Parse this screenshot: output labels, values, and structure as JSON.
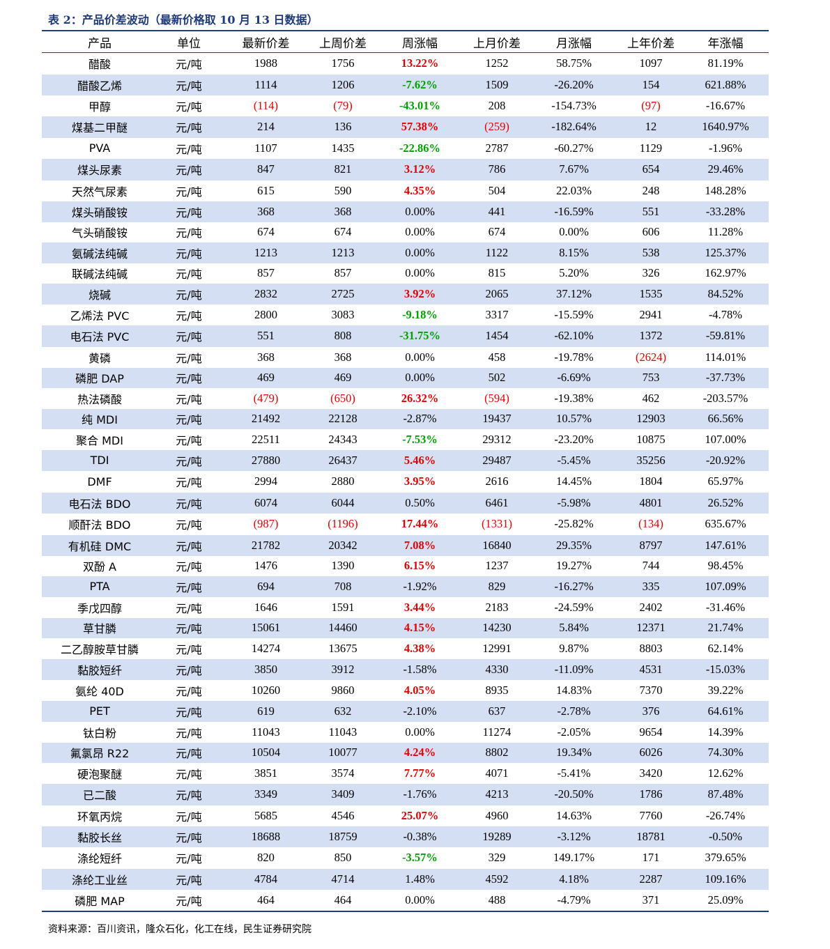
{
  "title": "表 2：产品价差波动（最新价格取 10 月 13 日数据）",
  "headers": [
    "产品",
    "单位",
    "最新价差",
    "上周价差",
    "周涨幅",
    "上月价差",
    "月涨幅",
    "上年价差",
    "年涨幅"
  ],
  "rows": [
    [
      "醋酸",
      "元/吨",
      "1988",
      "1756",
      "13.22%",
      "1252",
      "58.75%",
      "1097",
      "81.19%"
    ],
    [
      "醋酸乙烯",
      "元/吨",
      "1114",
      "1206",
      "-7.62%",
      "1509",
      "-26.20%",
      "154",
      "621.88%"
    ],
    [
      "甲醇",
      "元/吨",
      "(114)",
      "(79)",
      "-43.01%",
      "208",
      "-154.73%",
      "(97)",
      "-16.67%"
    ],
    [
      "煤基二甲醚",
      "元/吨",
      "214",
      "136",
      "57.38%",
      "(259)",
      "-182.64%",
      "12",
      "1640.97%"
    ],
    [
      "PVA",
      "元/吨",
      "1107",
      "1435",
      "-22.86%",
      "2787",
      "-60.27%",
      "1129",
      "-1.96%"
    ],
    [
      "煤头尿素",
      "元/吨",
      "847",
      "821",
      "3.12%",
      "786",
      "7.67%",
      "654",
      "29.46%"
    ],
    [
      "天然气尿素",
      "元/吨",
      "615",
      "590",
      "4.35%",
      "504",
      "22.03%",
      "248",
      "148.28%"
    ],
    [
      "煤头硝酸铵",
      "元/吨",
      "368",
      "368",
      "0.00%",
      "441",
      "-16.59%",
      "551",
      "-33.28%"
    ],
    [
      "气头硝酸铵",
      "元/吨",
      "674",
      "674",
      "0.00%",
      "674",
      "0.00%",
      "606",
      "11.28%"
    ],
    [
      "氨碱法纯碱",
      "元/吨",
      "1213",
      "1213",
      "0.00%",
      "1122",
      "8.15%",
      "538",
      "125.37%"
    ],
    [
      "联碱法纯碱",
      "元/吨",
      "857",
      "857",
      "0.00%",
      "815",
      "5.20%",
      "326",
      "162.97%"
    ],
    [
      "烧碱",
      "元/吨",
      "2832",
      "2725",
      "3.92%",
      "2065",
      "37.12%",
      "1535",
      "84.52%"
    ],
    [
      "乙烯法 PVC",
      "元/吨",
      "2800",
      "3083",
      "-9.18%",
      "3317",
      "-15.59%",
      "2941",
      "-4.78%"
    ],
    [
      "电石法 PVC",
      "元/吨",
      "551",
      "808",
      "-31.75%",
      "1454",
      "-62.10%",
      "1372",
      "-59.81%"
    ],
    [
      "黄磷",
      "元/吨",
      "368",
      "368",
      "0.00%",
      "458",
      "-19.78%",
      "(2624)",
      "114.01%"
    ],
    [
      "磷肥 DAP",
      "元/吨",
      "469",
      "469",
      "0.00%",
      "502",
      "-6.69%",
      "753",
      "-37.73%"
    ],
    [
      "热法磷酸",
      "元/吨",
      "(479)",
      "(650)",
      "26.32%",
      "(594)",
      "-19.38%",
      "462",
      "-203.57%"
    ],
    [
      "纯 MDI",
      "元/吨",
      "21492",
      "22128",
      "-2.87%",
      "19437",
      "10.57%",
      "12903",
      "66.56%"
    ],
    [
      "聚合 MDI",
      "元/吨",
      "22511",
      "24343",
      "-7.53%",
      "29312",
      "-23.20%",
      "10875",
      "107.00%"
    ],
    [
      "TDI",
      "元/吨",
      "27880",
      "26437",
      "5.46%",
      "29487",
      "-5.45%",
      "35256",
      "-20.92%"
    ],
    [
      "DMF",
      "元/吨",
      "2994",
      "2880",
      "3.95%",
      "2616",
      "14.45%",
      "1804",
      "65.97%"
    ],
    [
      "电石法 BDO",
      "元/吨",
      "6074",
      "6044",
      "0.50%",
      "6461",
      "-5.98%",
      "4801",
      "26.52%"
    ],
    [
      "顺酐法 BDO",
      "元/吨",
      "(987)",
      "(1196)",
      "17.44%",
      "(1331)",
      "-25.82%",
      "(134)",
      "635.67%"
    ],
    [
      "有机硅 DMC",
      "元/吨",
      "21782",
      "20342",
      "7.08%",
      "16840",
      "29.35%",
      "8797",
      "147.61%"
    ],
    [
      "双酚 A",
      "元/吨",
      "1476",
      "1390",
      "6.15%",
      "1237",
      "19.27%",
      "744",
      "98.45%"
    ],
    [
      "PTA",
      "元/吨",
      "694",
      "708",
      "-1.92%",
      "829",
      "-16.27%",
      "335",
      "107.09%"
    ],
    [
      "季戊四醇",
      "元/吨",
      "1646",
      "1591",
      "3.44%",
      "2183",
      "-24.59%",
      "2402",
      "-31.46%"
    ],
    [
      "草甘膦",
      "元/吨",
      "15061",
      "14460",
      "4.15%",
      "14230",
      "5.84%",
      "12371",
      "21.74%"
    ],
    [
      "二乙醇胺草甘膦",
      "元/吨",
      "14274",
      "13675",
      "4.38%",
      "12991",
      "9.87%",
      "8803",
      "62.14%"
    ],
    [
      "黏胶短纤",
      "元/吨",
      "3850",
      "3912",
      "-1.58%",
      "4330",
      "-11.09%",
      "4531",
      "-15.03%"
    ],
    [
      "氨纶 40D",
      "元/吨",
      "10260",
      "9860",
      "4.05%",
      "8935",
      "14.83%",
      "7370",
      "39.22%"
    ],
    [
      "PET",
      "元/吨",
      "619",
      "632",
      "-2.10%",
      "637",
      "-2.78%",
      "376",
      "64.61%"
    ],
    [
      "钛白粉",
      "元/吨",
      "11043",
      "11043",
      "0.00%",
      "11274",
      "-2.05%",
      "9654",
      "14.39%"
    ],
    [
      "氟氯昂 R22",
      "元/吨",
      "10504",
      "10077",
      "4.24%",
      "8802",
      "19.34%",
      "6026",
      "74.30%"
    ],
    [
      "硬泡聚醚",
      "元/吨",
      "3851",
      "3574",
      "7.77%",
      "4071",
      "-5.41%",
      "3420",
      "12.62%"
    ],
    [
      "已二酸",
      "元/吨",
      "3349",
      "3409",
      "-1.76%",
      "4213",
      "-20.50%",
      "1786",
      "87.48%"
    ],
    [
      "环氧丙烷",
      "元/吨",
      "5685",
      "4546",
      "25.07%",
      "4960",
      "14.63%",
      "7760",
      "-26.74%"
    ],
    [
      "黏胶长丝",
      "元/吨",
      "18688",
      "18759",
      "-0.38%",
      "19289",
      "-3.12%",
      "18781",
      "-0.50%"
    ],
    [
      "涤纶短纤",
      "元/吨",
      "820",
      "850",
      "-3.57%",
      "329",
      "149.17%",
      "171",
      "379.65%"
    ],
    [
      "涤纶工业丝",
      "元/吨",
      "4784",
      "4714",
      "1.48%",
      "4592",
      "4.18%",
      "2287",
      "109.16%"
    ],
    [
      "磷肥 MAP",
      "元/吨",
      "464",
      "464",
      "0.00%",
      "488",
      "-4.79%",
      "371",
      "25.09%"
    ]
  ],
  "colors": {
    "header_rule": "#1f3a7a",
    "stripe": "#d4dff3",
    "up": "#e00000",
    "down": "#00a000"
  },
  "footer": "资料来源：百川资讯，隆众石化，化工在线，民生证券研究院"
}
